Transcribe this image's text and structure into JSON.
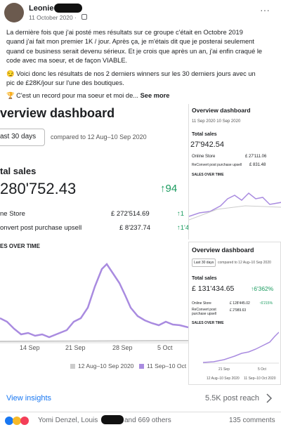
{
  "post": {
    "author": "Leonie",
    "date": "11 October 2020 ·",
    "more": "···",
    "paragraphs": [
      [
        "La dernière fois que j'ai posté mes résultats sur ce groupe c'était en Octobre 2019",
        "quand j'ai fait mon premier 1K / jour. Après ça, je m'étais dit que je posterai seulement",
        "quand ce business serait devenu sérieux. Et je crois que après un an, j'ai enfin craqué le",
        "code avec ma soeur, et de façon VIABLE."
      ],
      [
        "😏 Voici donc les résultats de nos 2 derniers winners sur les 30 derniers jours avec un",
        "pic de £28K/jour sur l'une des boutiques."
      ],
      [
        "🏆 C'est un record pour ma soeur et moi de..."
      ]
    ],
    "see_more": "See more"
  },
  "main_dashboard": {
    "title": "verview dashboard",
    "range": "ast 30 days",
    "compared": "compared to 12 Aug–10 Sep 2020",
    "total_label": "tal sales",
    "total": "280'752.43",
    "total_change": "↑94",
    "rows": [
      {
        "name": "ne Store",
        "value": "£ 272'514.69",
        "change": "↑1"
      },
      {
        "name": "onvert post purchase upsell",
        "value": "£ 8'237.74",
        "change": "↑1'4"
      }
    ],
    "chart_title": "ES OVER TIME",
    "x_labels": [
      "14 Sep",
      "21 Sep",
      "28 Sep",
      "5 Oct"
    ],
    "legend": [
      "12 Aug–10 Sep 2020",
      "11 Sep–10 Oct"
    ]
  },
  "top_right": {
    "title": "Overview dashboard",
    "dates": "11 Sep 2020   10 Sep 2020",
    "total_label": "Total sales",
    "total": "27'942.54",
    "rows": [
      {
        "name": "Online Store",
        "value": "£ 27'111.06"
      },
      {
        "name": "ReConvert post purchase upsell",
        "value": "£ 831.48"
      }
    ],
    "chart_title": "SALES OVER TIME"
  },
  "bottom_right": {
    "title": "Overview dashboard",
    "range": "Last 30 days",
    "compared": "compared to 12 Aug–10 Sep 2020",
    "total_label": "Total sales",
    "total": "£ 131'434.65",
    "total_change": "↑6'362%",
    "rows": [
      {
        "name": "Online Store",
        "value": "£ 128'445.02",
        "change": "↑6'215%"
      },
      {
        "name": "ReConvert post purchase upsell",
        "value": "£ 2'989.63"
      }
    ],
    "chart_title": "SALES OVER TIME",
    "x_labels": [
      "21 Sep",
      "5 Oct"
    ],
    "legend": [
      "12 Aug–10 Sep 2020",
      "11 Sep–10 Oct 2020"
    ]
  },
  "footer": {
    "insights": "View insights",
    "reach": "5.5K post reach",
    "reactors": "Yomi Denzel, Louis",
    "others": "and 669 others",
    "comments": "135 comments"
  }
}
